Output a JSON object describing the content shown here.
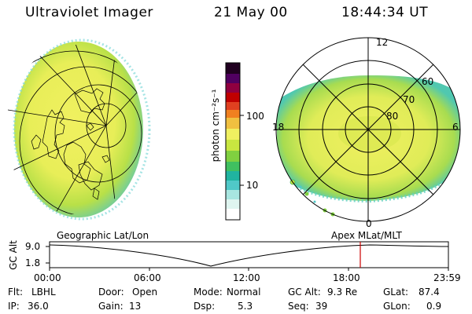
{
  "header": {
    "title": "Ultraviolet Imager",
    "date": "21 May 00",
    "time": "18:44:34 UT"
  },
  "colorbar": {
    "unit_label": "photon cm⁻²s⁻¹",
    "tick_100": "100",
    "tick_10": "10",
    "colors": [
      "#ffffff",
      "#dff5f0",
      "#a8e6e0",
      "#50c8c8",
      "#20b4a0",
      "#40c060",
      "#80d040",
      "#c8e640",
      "#f0f060",
      "#f0c040",
      "#f08020",
      "#e04020",
      "#c00000",
      "#900040",
      "#500060",
      "#200020"
    ]
  },
  "polar_plot": {
    "mlt_top": "12",
    "mlt_left": "18",
    "mlt_right": "6",
    "mlt_bottom": "0",
    "lat_60": "60",
    "lat_70": "70",
    "lat_80": "80"
  },
  "labels": {
    "geographic": "Geographic Lat/Lon",
    "apex": "Apex MLat/MLT"
  },
  "altitude_plot": {
    "ylabel": "GC Alt",
    "ytick_top": "9.0",
    "ytick_bottom": "1.8",
    "xticks": [
      "00:00",
      "06:00",
      "12:00",
      "18:00",
      "23:59"
    ],
    "marker_color": "#cc0000"
  },
  "status": {
    "row1": {
      "flt_label": "Flt:",
      "flt_value": "LBHL",
      "door_label": "Door:",
      "door_value": "Open",
      "mode_label": "Mode:",
      "mode_value": "Normal",
      "gcalt_label": "GC Alt:",
      "gcalt_value": "9.3 Re",
      "glat_label": "GLat:",
      "glat_value": "87.4"
    },
    "row2": {
      "ip_label": "IP:",
      "ip_value": "36.0",
      "gain_label": "Gain:",
      "gain_value": "13",
      "dsp_label": "Dsp:",
      "dsp_value": "5.3",
      "seq_label": "Seq:",
      "seq_value": "39",
      "glon_label": "GLon:",
      "glon_value": "0.9"
    }
  }
}
